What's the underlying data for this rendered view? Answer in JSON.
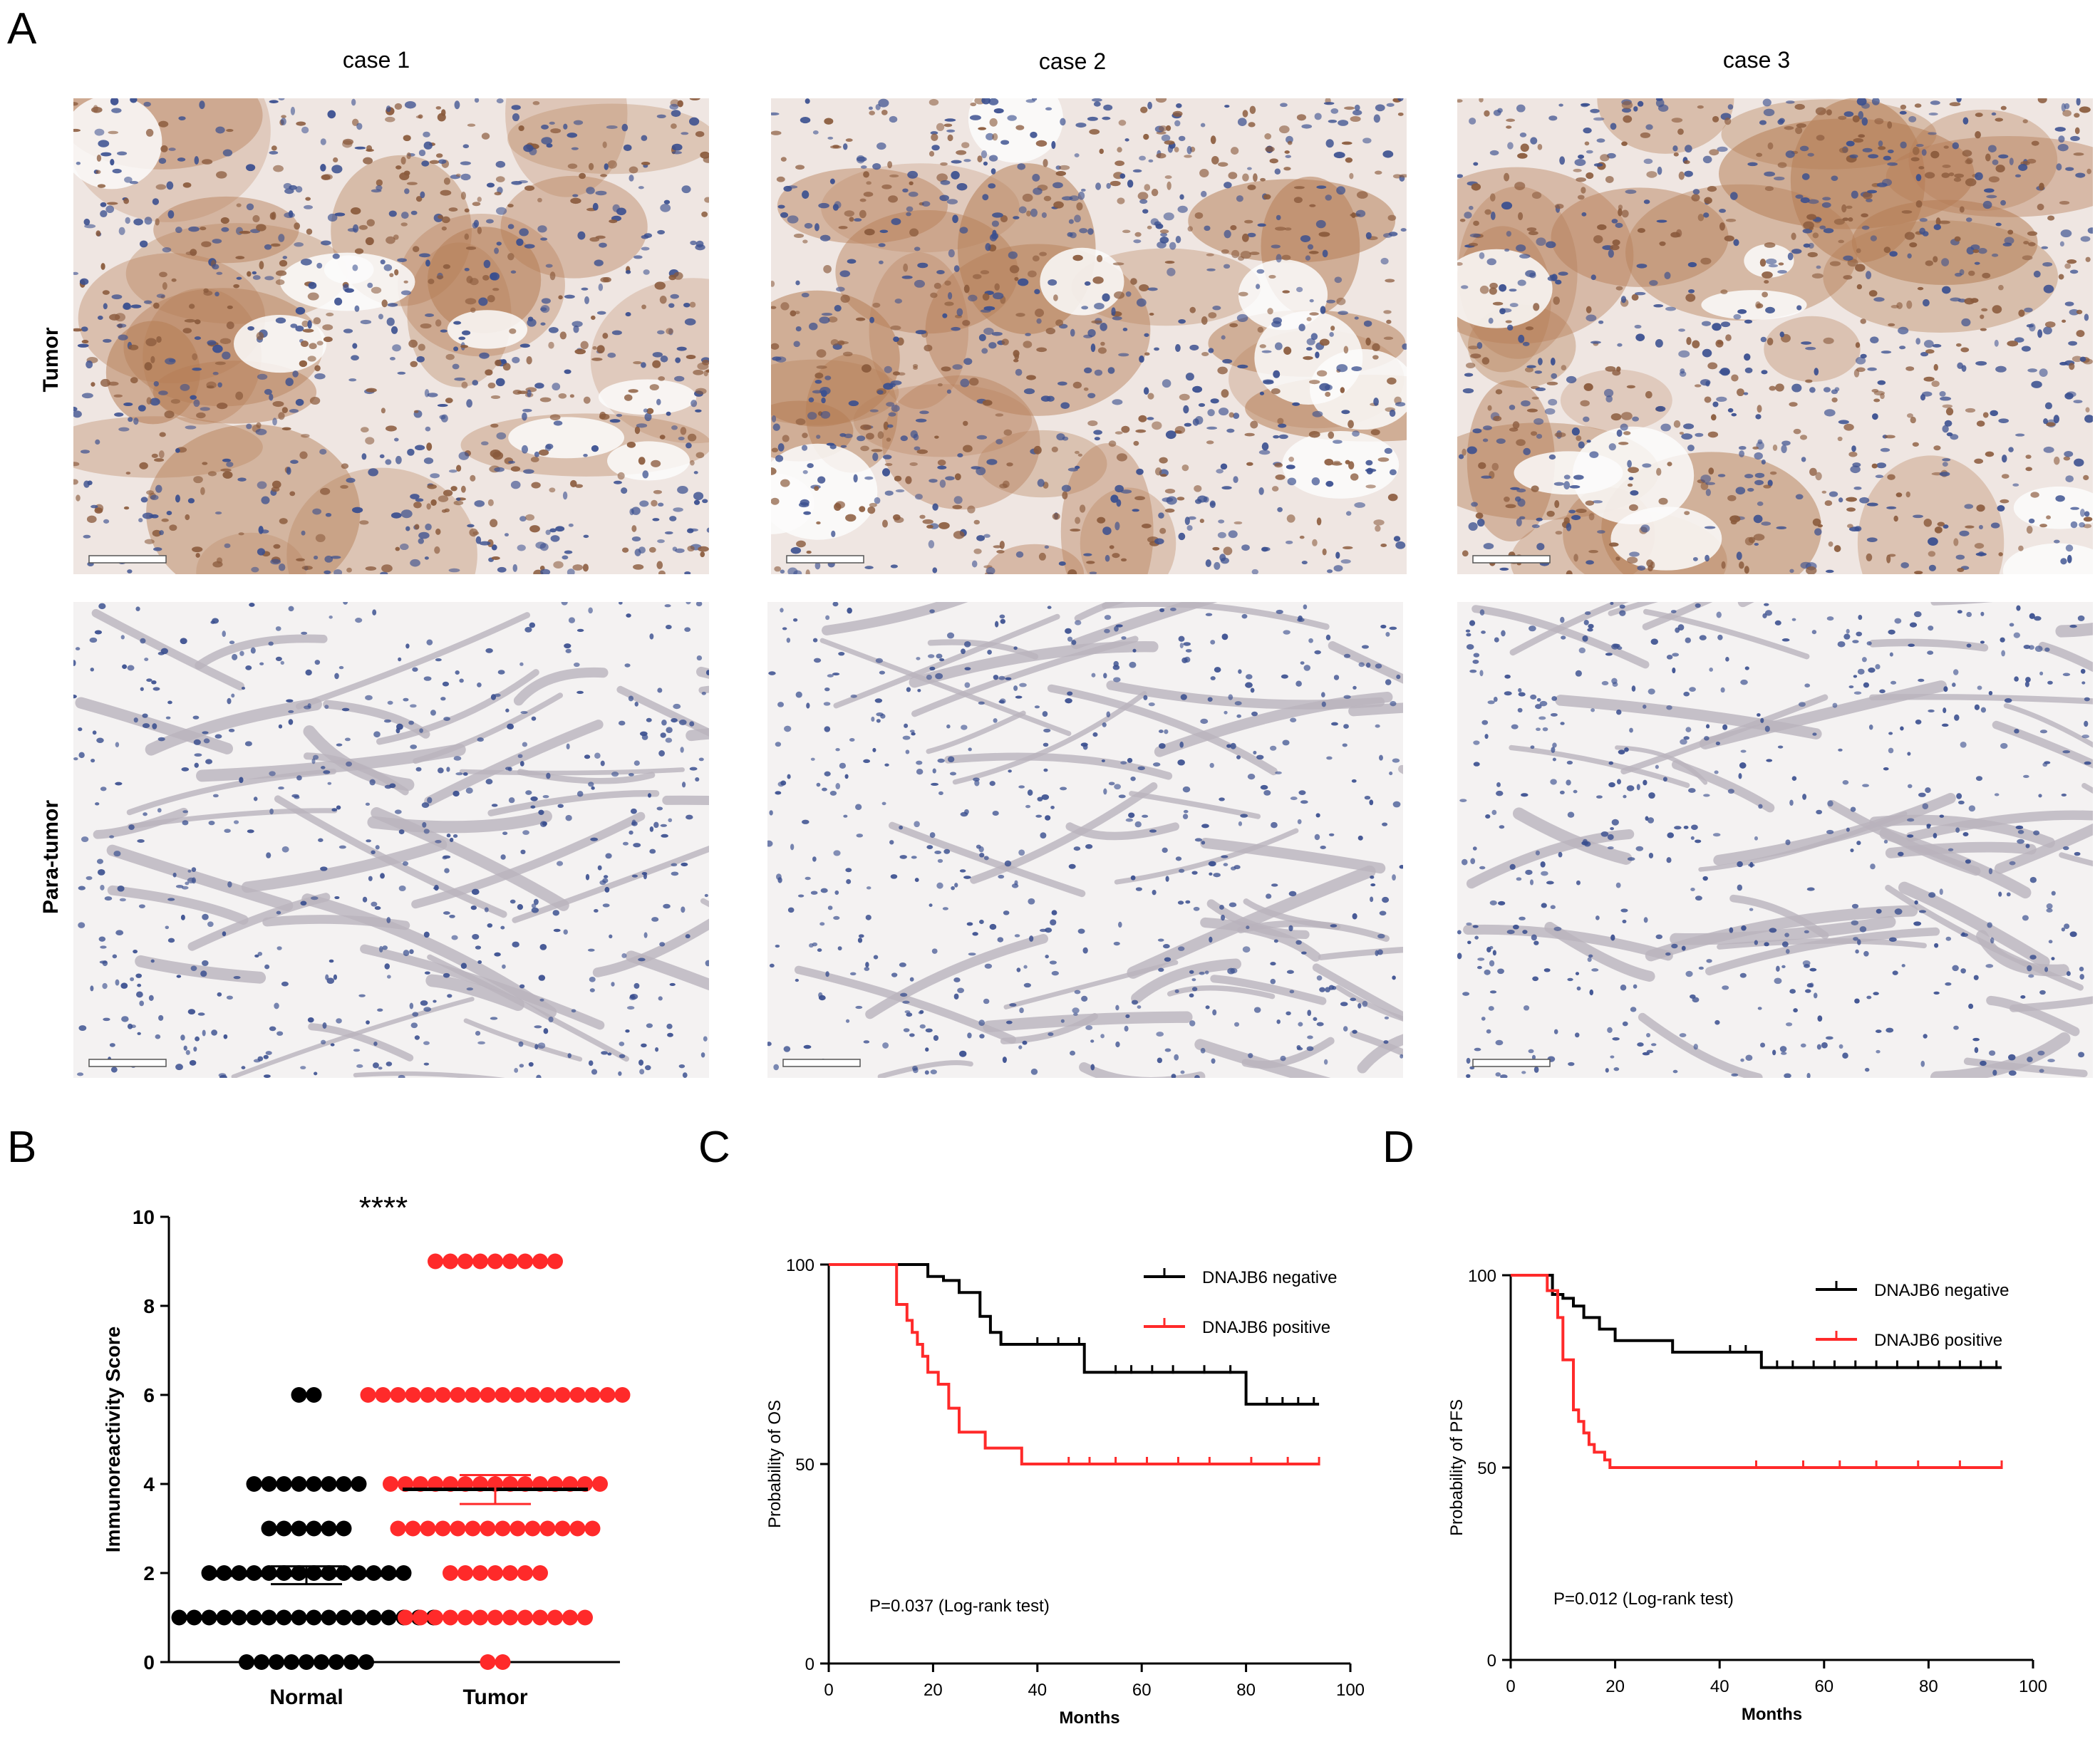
{
  "figure": {
    "panel_labels": {
      "a": "A",
      "b": "B",
      "c": "C",
      "d": "D"
    },
    "panel_a": {
      "case_labels": [
        "case 1",
        "case 2",
        "case 3"
      ],
      "row_labels": [
        "Tumor",
        "Para-tumor"
      ],
      "stain_colors": {
        "nuclei": "#3a4f8f",
        "positive": "#b57d55",
        "background": "#f4f2f2"
      }
    }
  },
  "chart_data": [
    {
      "id": "B",
      "type": "scatter",
      "ylabel": "Immunoreactivity Score",
      "categories": [
        "Normal",
        "Tumor"
      ],
      "ylim": [
        0,
        10
      ],
      "yticks": [
        0,
        2,
        4,
        6,
        8,
        10
      ],
      "significance": "****",
      "groups": [
        {
          "name": "Normal",
          "color": "#000000",
          "counts": {
            "0": 9,
            "1": 18,
            "2": 14,
            "3": 6,
            "4": 8,
            "6": 2
          },
          "mean": 1.95,
          "sem_low": 1.75,
          "sem_high": 2.15
        },
        {
          "name": "Tumor",
          "color": "#ff2a2a",
          "counts": {
            "0": 2,
            "1": 13,
            "2": 7,
            "3": 14,
            "4": 15,
            "6": 18,
            "9": 9
          },
          "mean": 3.88,
          "sem_low": 3.55,
          "sem_high": 4.2
        }
      ]
    },
    {
      "id": "C",
      "type": "line",
      "xlabel": "Months",
      "ylabel": "Probability of OS",
      "xlim": [
        0,
        100
      ],
      "ylim": [
        0,
        100
      ],
      "xticks": [
        0,
        20,
        40,
        60,
        80,
        100
      ],
      "yticks": [
        0,
        50,
        100
      ],
      "annotation": "P=0.037 (Log-rank test)",
      "legend_position": "top-right",
      "series": [
        {
          "name": "DNAJB6 negative",
          "color": "#000000",
          "x": [
            0,
            19,
            22,
            25,
            29,
            31,
            33,
            49,
            80,
            94
          ],
          "y": [
            100,
            97,
            96,
            93,
            87,
            83,
            80,
            73,
            65,
            65
          ],
          "censored_x": [
            40,
            44,
            48,
            55,
            58,
            62,
            66,
            72,
            77,
            84,
            87,
            90,
            93
          ]
        },
        {
          "name": "DNAJB6 positive",
          "color": "#ff2a2a",
          "x": [
            0,
            13,
            15,
            16,
            17,
            18,
            19,
            21,
            23,
            25,
            30,
            37,
            94
          ],
          "y": [
            100,
            90,
            86,
            83,
            80,
            77,
            73,
            70,
            64,
            58,
            54,
            50,
            50
          ],
          "censored_x": [
            46,
            50,
            55,
            61,
            67,
            73,
            81,
            88,
            94
          ]
        }
      ]
    },
    {
      "id": "D",
      "type": "line",
      "xlabel": "Months",
      "ylabel": "Probability of PFS",
      "xlim": [
        0,
        100
      ],
      "ylim": [
        0,
        100
      ],
      "xticks": [
        0,
        20,
        40,
        60,
        80,
        100
      ],
      "yticks": [
        0,
        50,
        100
      ],
      "annotation": "P=0.012 (Log-rank test)",
      "legend_position": "top-right",
      "series": [
        {
          "name": "DNAJB6 negative",
          "color": "#000000",
          "x": [
            0,
            8,
            10,
            12,
            14,
            17,
            20,
            31,
            48,
            94
          ],
          "y": [
            100,
            95,
            94,
            92,
            89,
            86,
            83,
            80,
            76,
            76
          ],
          "censored_x": [
            42,
            45,
            51,
            54,
            58,
            62,
            66,
            70,
            74,
            78,
            82,
            86,
            90,
            93
          ]
        },
        {
          "name": "DNAJB6 positive",
          "color": "#ff2a2a",
          "x": [
            0,
            7,
            9,
            10,
            12,
            13,
            14,
            15,
            16,
            18,
            19,
            94
          ],
          "y": [
            100,
            96,
            89,
            78,
            65,
            62,
            59,
            56,
            54,
            52,
            50,
            50
          ],
          "censored_x": [
            47,
            56,
            63,
            70,
            78,
            86,
            94
          ]
        }
      ]
    }
  ]
}
